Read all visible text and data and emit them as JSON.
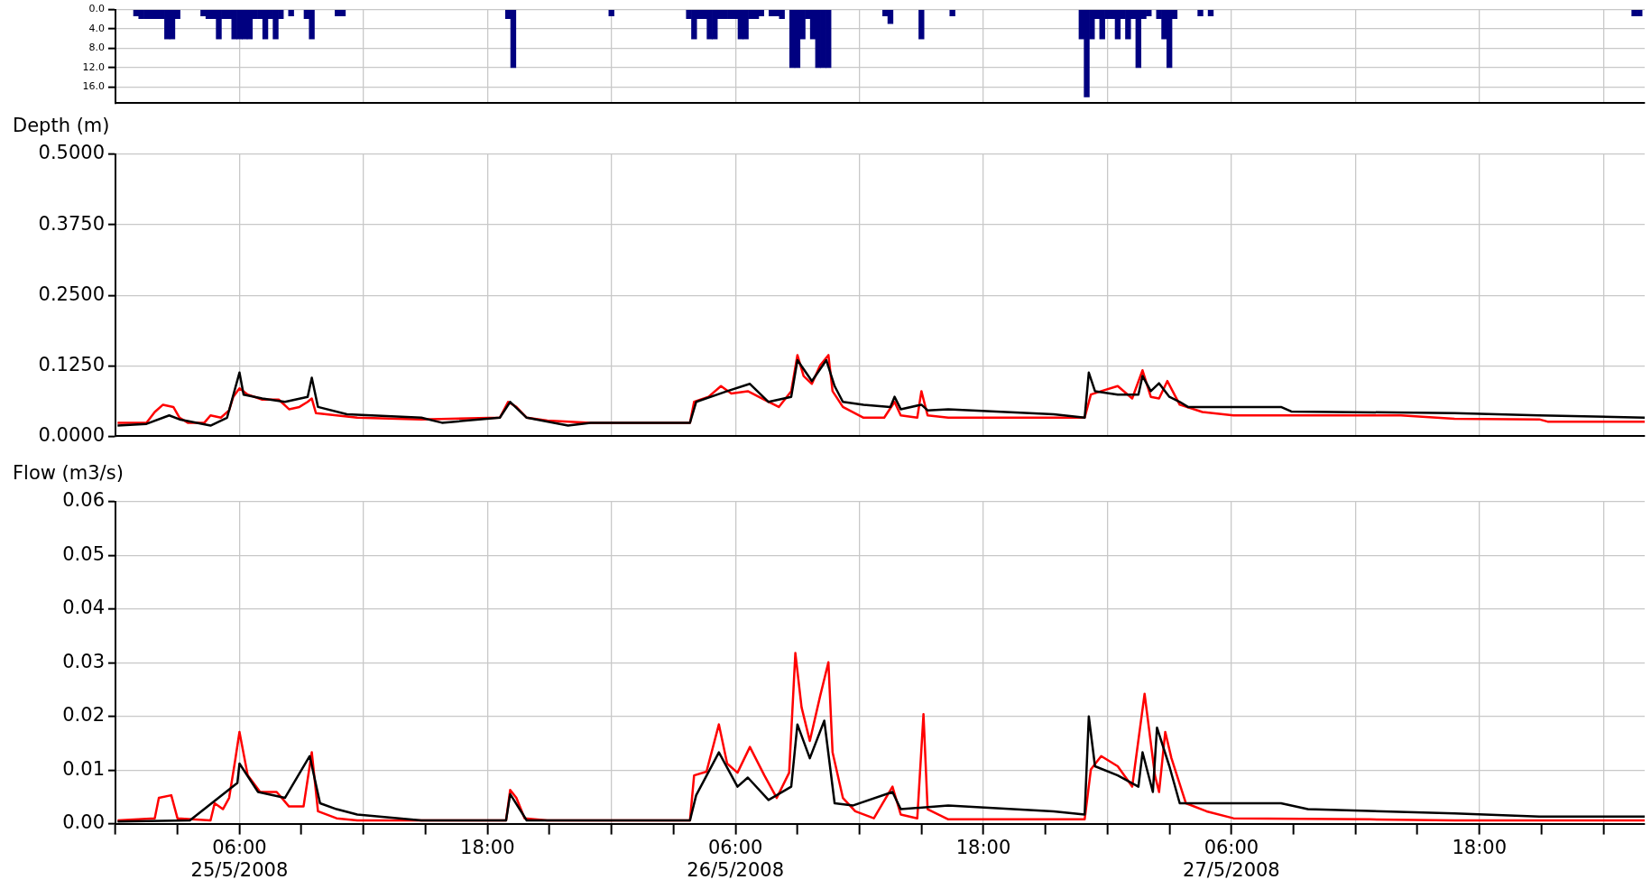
{
  "chart_data": [
    {
      "type": "bar",
      "color": "#000080",
      "x": [
        "2008-05-25T01:00",
        "2008-05-25T01:15",
        "2008-05-25T01:30",
        "2008-05-25T01:45",
        "2008-05-25T02:00",
        "2008-05-25T02:15",
        "2008-05-25T02:30",
        "2008-05-25T02:45",
        "2008-05-25T03:00",
        "2008-05-25T04:15",
        "2008-05-25T04:30",
        "2008-05-25T04:45",
        "2008-05-25T05:00",
        "2008-05-25T05:15",
        "2008-05-25T05:30",
        "2008-05-25T05:45",
        "2008-05-25T06:00",
        "2008-05-25T06:15",
        "2008-05-25T06:30",
        "2008-05-25T06:45",
        "2008-05-25T07:00",
        "2008-05-25T07:15",
        "2008-05-25T07:30",
        "2008-05-25T07:45",
        "2008-05-25T08:00",
        "2008-05-25T08:30",
        "2008-05-25T09:15",
        "2008-05-25T09:30",
        "2008-05-25T10:45",
        "2008-05-25T11:00",
        "2008-05-25T19:00",
        "2008-05-25T19:15",
        "2008-05-26T00:00",
        "2008-05-26T03:45",
        "2008-05-26T04:00",
        "2008-05-26T04:15",
        "2008-05-26T04:30",
        "2008-05-26T04:45",
        "2008-05-26T05:00",
        "2008-05-26T05:15",
        "2008-05-26T05:30",
        "2008-05-26T05:45",
        "2008-05-26T06:00",
        "2008-05-26T06:15",
        "2008-05-26T06:30",
        "2008-05-26T06:45",
        "2008-05-26T07:00",
        "2008-05-26T07:15",
        "2008-05-26T07:45",
        "2008-05-26T08:00",
        "2008-05-26T08:15",
        "2008-05-26T08:45",
        "2008-05-26T09:00",
        "2008-05-26T09:15",
        "2008-05-26T09:30",
        "2008-05-26T09:45",
        "2008-05-26T10:00",
        "2008-05-26T10:15",
        "2008-05-26T10:30",
        "2008-05-26T13:15",
        "2008-05-26T13:30",
        "2008-05-26T15:00",
        "2008-05-26T16:30",
        "2008-05-26T22:45",
        "2008-05-26T23:00",
        "2008-05-26T23:15",
        "2008-05-26T23:30",
        "2008-05-26T23:45",
        "2008-05-27T00:00",
        "2008-05-27T00:15",
        "2008-05-27T00:30",
        "2008-05-27T00:45",
        "2008-05-27T01:00",
        "2008-05-27T01:15",
        "2008-05-27T01:30",
        "2008-05-27T01:45",
        "2008-05-27T02:00",
        "2008-05-27T02:30",
        "2008-05-27T02:45",
        "2008-05-27T03:00",
        "2008-05-27T03:15",
        "2008-05-27T04:30",
        "2008-05-27T05:00",
        "2008-05-28T01:30",
        "2008-05-28T01:45"
      ],
      "values": [
        1.3,
        1.9,
        1.9,
        1.9,
        1.9,
        1.9,
        6.1,
        6.1,
        1.9,
        1.3,
        1.9,
        1.9,
        6.1,
        1.9,
        1.9,
        6.1,
        6.1,
        6.1,
        6.1,
        1.9,
        1.9,
        6.1,
        1.9,
        6.1,
        1.9,
        1.3,
        1.9,
        6.1,
        1.3,
        1.3,
        1.9,
        12.0,
        1.3,
        1.9,
        6.1,
        1.9,
        1.9,
        6.1,
        6.1,
        1.9,
        1.9,
        1.9,
        1.9,
        6.1,
        6.1,
        1.9,
        1.9,
        1.3,
        1.3,
        1.3,
        1.9,
        12.0,
        12.0,
        6.1,
        1.9,
        6.1,
        12.0,
        12.0,
        12.0,
        1.3,
        2.9,
        6.1,
        1.3,
        6.1,
        18.1,
        6.1,
        1.9,
        6.1,
        1.9,
        1.9,
        6.1,
        1.9,
        6.1,
        1.9,
        12.0,
        1.9,
        1.3,
        1.9,
        6.1,
        12.0,
        1.9,
        1.3,
        1.3,
        1.3,
        1.3
      ],
      "xlim": [
        "2008-05-25T00:00",
        "2008-05-28T02:00"
      ],
      "xticks": [
        {
          "value": "2008-05-25T00:00",
          "label": null
        },
        {
          "value": "2008-05-25T06:00",
          "label": null
        },
        {
          "value": "2008-05-25T12:00",
          "label": null
        },
        {
          "value": "2008-05-25T18:00",
          "label": null
        },
        {
          "value": "2008-05-26T00:00",
          "label": null
        },
        {
          "value": "2008-05-26T06:00",
          "label": null
        },
        {
          "value": "2008-05-26T12:00",
          "label": null
        },
        {
          "value": "2008-05-26T18:00",
          "label": null
        },
        {
          "value": "2008-05-27T00:00",
          "label": null
        },
        {
          "value": "2008-05-27T06:00",
          "label": null
        },
        {
          "value": "2008-05-27T12:00",
          "label": null
        },
        {
          "value": "2008-05-27T18:00",
          "label": null
        },
        {
          "value": "2008-05-28T00:00",
          "label": null
        }
      ],
      "ylim": [
        19.4,
        0
      ],
      "yticks": [
        {
          "value": 0,
          "label": "0.0"
        },
        {
          "value": 4,
          "label": "4.0"
        },
        {
          "value": 8,
          "label": "8.0"
        },
        {
          "value": 12,
          "label": "12.0"
        },
        {
          "value": 16,
          "label": "16.0"
        }
      ],
      "grid": true,
      "tick_labels": "y"
    },
    {
      "type": "line",
      "ylabel": "Depth (m)",
      "series": [
        {
          "color": "#000000",
          "x": [
            "2008-05-25T00:06",
            "2008-05-25T01:30",
            "2008-05-25T02:36",
            "2008-05-25T03:06",
            "2008-05-25T04:36",
            "2008-05-25T05:24",
            "2008-05-25T06:00",
            "2008-05-25T06:12",
            "2008-05-25T07:06",
            "2008-05-25T08:12",
            "2008-05-25T09:18",
            "2008-05-25T09:30",
            "2008-05-25T09:48",
            "2008-05-25T11:12",
            "2008-05-25T14:48",
            "2008-05-25T15:48",
            "2008-05-25T18:36",
            "2008-05-25T19:06",
            "2008-05-25T19:54",
            "2008-05-25T21:54",
            "2008-05-25T23:00",
            "2008-05-26T03:48",
            "2008-05-26T04:06",
            "2008-05-26T05:36",
            "2008-05-26T06:42",
            "2008-05-26T07:36",
            "2008-05-26T08:42",
            "2008-05-26T09:00",
            "2008-05-26T09:42",
            "2008-05-26T10:24",
            "2008-05-26T10:48",
            "2008-05-26T11:12",
            "2008-05-26T12:12",
            "2008-05-26T13:30",
            "2008-05-26T13:42",
            "2008-05-26T14:00",
            "2008-05-26T15:00",
            "2008-05-26T15:18",
            "2008-05-26T16:18",
            "2008-05-26T21:24",
            "2008-05-26T22:54",
            "2008-05-26T23:06",
            "2008-05-26T23:24",
            "2008-05-27T00:30",
            "2008-05-27T01:30",
            "2008-05-27T01:42",
            "2008-05-27T02:06",
            "2008-05-27T02:30",
            "2008-05-27T03:00",
            "2008-05-27T03:30",
            "2008-05-27T03:54",
            "2008-05-27T08:24",
            "2008-05-27T08:54",
            "2008-05-27T16:48",
            "2008-05-27T20:54",
            "2008-05-28T02:00"
          ],
          "values": [
            0.019,
            0.022,
            0.037,
            0.03,
            0.019,
            0.033,
            0.113,
            0.074,
            0.067,
            0.061,
            0.07,
            0.104,
            0.052,
            0.039,
            0.033,
            0.024,
            0.033,
            0.061,
            0.033,
            0.019,
            0.024,
            0.024,
            0.061,
            0.08,
            0.093,
            0.061,
            0.07,
            0.135,
            0.098,
            0.135,
            0.089,
            0.061,
            0.056,
            0.052,
            0.07,
            0.048,
            0.056,
            0.046,
            0.048,
            0.039,
            0.033,
            0.113,
            0.08,
            0.074,
            0.074,
            0.107,
            0.08,
            0.094,
            0.07,
            0.061,
            0.052,
            0.052,
            0.044,
            0.041,
            0.037,
            0.033
          ]
        },
        {
          "color": "#ff0000",
          "x": [
            "2008-05-25T00:06",
            "2008-05-25T01:30",
            "2008-05-25T01:54",
            "2008-05-25T02:18",
            "2008-05-25T02:48",
            "2008-05-25T03:06",
            "2008-05-25T03:30",
            "2008-05-25T04:18",
            "2008-05-25T04:36",
            "2008-05-25T05:06",
            "2008-05-25T05:30",
            "2008-05-25T05:42",
            "2008-05-25T06:00",
            "2008-05-25T06:24",
            "2008-05-25T07:06",
            "2008-05-25T07:54",
            "2008-05-25T08:24",
            "2008-05-25T08:54",
            "2008-05-25T09:18",
            "2008-05-25T09:30",
            "2008-05-25T09:42",
            "2008-05-25T10:42",
            "2008-05-25T11:42",
            "2008-05-25T14:48",
            "2008-05-25T18:36",
            "2008-05-25T19:00",
            "2008-05-25T19:24",
            "2008-05-25T19:54",
            "2008-05-25T20:54",
            "2008-05-25T23:00",
            "2008-05-26T03:48",
            "2008-05-26T04:00",
            "2008-05-26T04:42",
            "2008-05-26T05:18",
            "2008-05-26T05:48",
            "2008-05-26T06:36",
            "2008-05-26T07:24",
            "2008-05-26T08:06",
            "2008-05-26T08:42",
            "2008-05-26T09:00",
            "2008-05-26T09:18",
            "2008-05-26T09:42",
            "2008-05-26T10:06",
            "2008-05-26T10:30",
            "2008-05-26T10:42",
            "2008-05-26T11:12",
            "2008-05-26T12:12",
            "2008-05-26T13:12",
            "2008-05-26T13:42",
            "2008-05-26T14:00",
            "2008-05-26T14:48",
            "2008-05-26T15:00",
            "2008-05-26T15:18",
            "2008-05-26T16:18",
            "2008-05-26T21:24",
            "2008-05-26T22:54",
            "2008-05-26T23:12",
            "2008-05-26T23:42",
            "2008-05-27T00:30",
            "2008-05-27T01:12",
            "2008-05-27T01:42",
            "2008-05-27T02:06",
            "2008-05-27T02:30",
            "2008-05-27T02:54",
            "2008-05-27T03:30",
            "2008-05-27T04:36",
            "2008-05-27T06:06",
            "2008-05-27T14:12",
            "2008-05-27T16:48",
            "2008-05-27T20:54",
            "2008-05-27T21:18",
            "2008-05-28T02:00"
          ],
          "values": [
            0.024,
            0.024,
            0.043,
            0.056,
            0.052,
            0.033,
            0.024,
            0.024,
            0.037,
            0.033,
            0.046,
            0.07,
            0.085,
            0.074,
            0.065,
            0.065,
            0.048,
            0.052,
            0.061,
            0.067,
            0.041,
            0.037,
            0.033,
            0.03,
            0.033,
            0.061,
            0.052,
            0.033,
            0.028,
            0.024,
            0.024,
            0.061,
            0.07,
            0.089,
            0.076,
            0.08,
            0.065,
            0.052,
            0.08,
            0.144,
            0.107,
            0.093,
            0.126,
            0.144,
            0.08,
            0.052,
            0.033,
            0.033,
            0.061,
            0.037,
            0.033,
            0.08,
            0.037,
            0.033,
            0.033,
            0.033,
            0.074,
            0.08,
            0.089,
            0.067,
            0.117,
            0.07,
            0.067,
            0.098,
            0.056,
            0.043,
            0.037,
            0.037,
            0.031,
            0.03,
            0.026,
            0.026
          ]
        }
      ],
      "xlim": [
        "2008-05-25T00:00",
        "2008-05-28T02:00"
      ],
      "xticks": [
        {
          "value": "2008-05-25T00:00",
          "label": null
        },
        {
          "value": "2008-05-25T06:00",
          "label": null
        },
        {
          "value": "2008-05-25T12:00",
          "label": null
        },
        {
          "value": "2008-05-25T18:00",
          "label": null
        },
        {
          "value": "2008-05-26T00:00",
          "label": null
        },
        {
          "value": "2008-05-26T06:00",
          "label": null
        },
        {
          "value": "2008-05-26T12:00",
          "label": null
        },
        {
          "value": "2008-05-26T18:00",
          "label": null
        },
        {
          "value": "2008-05-27T00:00",
          "label": null
        },
        {
          "value": "2008-05-27T06:00",
          "label": null
        },
        {
          "value": "2008-05-27T12:00",
          "label": null
        },
        {
          "value": "2008-05-27T18:00",
          "label": null
        },
        {
          "value": "2008-05-28T00:00",
          "label": null
        }
      ],
      "ylim": [
        0,
        0.5
      ],
      "yticks": [
        {
          "value": 0,
          "label": "0.0000"
        },
        {
          "value": 0.125,
          "label": "0.1250"
        },
        {
          "value": 0.25,
          "label": "0.2500"
        },
        {
          "value": 0.375,
          "label": "0.3750"
        },
        {
          "value": 0.5,
          "label": "0.5000"
        }
      ],
      "grid": true,
      "tick_labels": "y"
    },
    {
      "type": "line",
      "ylabel": "Flow (m3/s)",
      "series": [
        {
          "color": "#000000",
          "x": [
            "2008-05-25T00:06",
            "2008-05-25T03:36",
            "2008-05-25T05:54",
            "2008-05-25T06:00",
            "2008-05-25T06:54",
            "2008-05-25T08:12",
            "2008-05-25T09:24",
            "2008-05-25T09:54",
            "2008-05-25T10:42",
            "2008-05-25T11:42",
            "2008-05-25T14:48",
            "2008-05-25T18:54",
            "2008-05-25T19:06",
            "2008-05-25T19:54",
            "2008-05-25T23:00",
            "2008-05-26T03:48",
            "2008-05-26T04:06",
            "2008-05-26T05:12",
            "2008-05-26T06:06",
            "2008-05-26T06:36",
            "2008-05-26T07:36",
            "2008-05-26T08:42",
            "2008-05-26T09:00",
            "2008-05-26T09:36",
            "2008-05-26T10:18",
            "2008-05-26T10:48",
            "2008-05-26T11:42",
            "2008-05-26T13:36",
            "2008-05-26T14:00",
            "2008-05-26T16:18",
            "2008-05-26T21:24",
            "2008-05-26T22:54",
            "2008-05-26T23:06",
            "2008-05-26T23:24",
            "2008-05-27T00:30",
            "2008-05-27T01:30",
            "2008-05-27T01:42",
            "2008-05-27T02:12",
            "2008-05-27T02:24",
            "2008-05-27T03:00",
            "2008-05-27T03:30",
            "2008-05-27T08:24",
            "2008-05-27T09:42",
            "2008-05-27T16:48",
            "2008-05-27T20:54",
            "2008-05-28T02:00"
          ],
          "values": [
            0.0004,
            0.0006,
            0.0076,
            0.0112,
            0.0059,
            0.0048,
            0.0126,
            0.0038,
            0.0027,
            0.0017,
            0.0006,
            0.0006,
            0.0055,
            0.0006,
            0.0006,
            0.0006,
            0.0053,
            0.0133,
            0.0069,
            0.0086,
            0.0044,
            0.0069,
            0.0185,
            0.0122,
            0.0192,
            0.0038,
            0.0034,
            0.0059,
            0.0027,
            0.0034,
            0.0023,
            0.0017,
            0.02,
            0.0107,
            0.009,
            0.0069,
            0.0133,
            0.0059,
            0.0179,
            0.0107,
            0.0038,
            0.0038,
            0.0027,
            0.0019,
            0.0013,
            0.0013
          ]
        },
        {
          "color": "#ff0000",
          "x": [
            "2008-05-25T00:06",
            "2008-05-25T01:54",
            "2008-05-25T02:06",
            "2008-05-25T02:42",
            "2008-05-25T03:00",
            "2008-05-25T04:36",
            "2008-05-25T04:48",
            "2008-05-25T05:12",
            "2008-05-25T05:30",
            "2008-05-25T05:48",
            "2008-05-25T06:00",
            "2008-05-25T06:24",
            "2008-05-25T07:00",
            "2008-05-25T07:48",
            "2008-05-25T08:24",
            "2008-05-25T09:06",
            "2008-05-25T09:30",
            "2008-05-25T09:48",
            "2008-05-25T10:42",
            "2008-05-25T11:42",
            "2008-05-25T18:54",
            "2008-05-25T19:06",
            "2008-05-25T19:24",
            "2008-05-25T19:48",
            "2008-05-25T20:54",
            "2008-05-26T03:48",
            "2008-05-26T04:00",
            "2008-05-26T04:36",
            "2008-05-26T05:12",
            "2008-05-26T05:36",
            "2008-05-26T06:06",
            "2008-05-26T06:42",
            "2008-05-26T07:24",
            "2008-05-26T08:00",
            "2008-05-26T08:36",
            "2008-05-26T08:54",
            "2008-05-26T09:12",
            "2008-05-26T09:36",
            "2008-05-26T10:06",
            "2008-05-26T10:30",
            "2008-05-26T10:42",
            "2008-05-26T11:12",
            "2008-05-26T11:48",
            "2008-05-26T12:42",
            "2008-05-26T13:36",
            "2008-05-26T14:00",
            "2008-05-26T14:48",
            "2008-05-26T15:06",
            "2008-05-26T15:18",
            "2008-05-26T16:18",
            "2008-05-26T22:54",
            "2008-05-26T23:12",
            "2008-05-26T23:42",
            "2008-05-27T00:30",
            "2008-05-27T01:12",
            "2008-05-27T01:48",
            "2008-05-27T02:18",
            "2008-05-27T02:30",
            "2008-05-27T02:48",
            "2008-05-27T03:06",
            "2008-05-27T03:48",
            "2008-05-27T04:48",
            "2008-05-27T06:06",
            "2008-05-27T12:42",
            "2008-05-27T16:48",
            "2008-05-28T02:00"
          ],
          "values": [
            0.0006,
            0.001,
            0.0048,
            0.0053,
            0.001,
            0.0006,
            0.0038,
            0.0027,
            0.0048,
            0.012,
            0.0171,
            0.009,
            0.0059,
            0.0059,
            0.0032,
            0.0032,
            0.0133,
            0.0023,
            0.001,
            0.0006,
            0.0006,
            0.0063,
            0.0048,
            0.001,
            0.0006,
            0.0006,
            0.009,
            0.0097,
            0.0185,
            0.0112,
            0.0095,
            0.0143,
            0.009,
            0.0048,
            0.0095,
            0.0318,
            0.0217,
            0.0154,
            0.0238,
            0.0301,
            0.0133,
            0.0048,
            0.0023,
            0.001,
            0.0069,
            0.0017,
            0.001,
            0.0204,
            0.0027,
            0.0008,
            0.0008,
            0.0101,
            0.0126,
            0.0107,
            0.0069,
            0.0242,
            0.009,
            0.0059,
            0.0171,
            0.0122,
            0.0038,
            0.0023,
            0.001,
            0.0008,
            0.0006,
            0.0006
          ]
        }
      ],
      "xlim": [
        "2008-05-25T00:00",
        "2008-05-28T02:00"
      ],
      "xticks": [
        {
          "value": "2008-05-25T00:00",
          "label": null
        },
        {
          "value": "2008-05-25T03:00",
          "label": null
        },
        {
          "value": "2008-05-25T06:00",
          "label": "06:00\n25/5/2008"
        },
        {
          "value": "2008-05-25T09:00",
          "label": null
        },
        {
          "value": "2008-05-25T12:00",
          "label": null
        },
        {
          "value": "2008-05-25T15:00",
          "label": null
        },
        {
          "value": "2008-05-25T18:00",
          "label": "18:00"
        },
        {
          "value": "2008-05-25T21:00",
          "label": null
        },
        {
          "value": "2008-05-26T00:00",
          "label": null
        },
        {
          "value": "2008-05-26T03:00",
          "label": null
        },
        {
          "value": "2008-05-26T06:00",
          "label": "06:00\n26/5/2008"
        },
        {
          "value": "2008-05-26T09:00",
          "label": null
        },
        {
          "value": "2008-05-26T12:00",
          "label": null
        },
        {
          "value": "2008-05-26T15:00",
          "label": null
        },
        {
          "value": "2008-05-26T18:00",
          "label": "18:00"
        },
        {
          "value": "2008-05-26T21:00",
          "label": null
        },
        {
          "value": "2008-05-27T00:00",
          "label": null
        },
        {
          "value": "2008-05-27T03:00",
          "label": null
        },
        {
          "value": "2008-05-27T06:00",
          "label": "06:00\n27/5/2008"
        },
        {
          "value": "2008-05-27T09:00",
          "label": null
        },
        {
          "value": "2008-05-27T12:00",
          "label": null
        },
        {
          "value": "2008-05-27T15:00",
          "label": null
        },
        {
          "value": "2008-05-27T18:00",
          "label": "18:00"
        },
        {
          "value": "2008-05-27T21:00",
          "label": null
        },
        {
          "value": "2008-05-28T00:00",
          "label": null
        }
      ],
      "ylim": [
        0,
        0.06
      ],
      "yticks": [
        {
          "value": 0,
          "label": "0.00"
        },
        {
          "value": 0.01,
          "label": "0.01"
        },
        {
          "value": 0.02,
          "label": "0.02"
        },
        {
          "value": 0.03,
          "label": "0.03"
        },
        {
          "value": 0.04,
          "label": "0.04"
        },
        {
          "value": 0.05,
          "label": "0.05"
        },
        {
          "value": 0.06,
          "label": "0.06"
        }
      ],
      "grid": true
    }
  ]
}
